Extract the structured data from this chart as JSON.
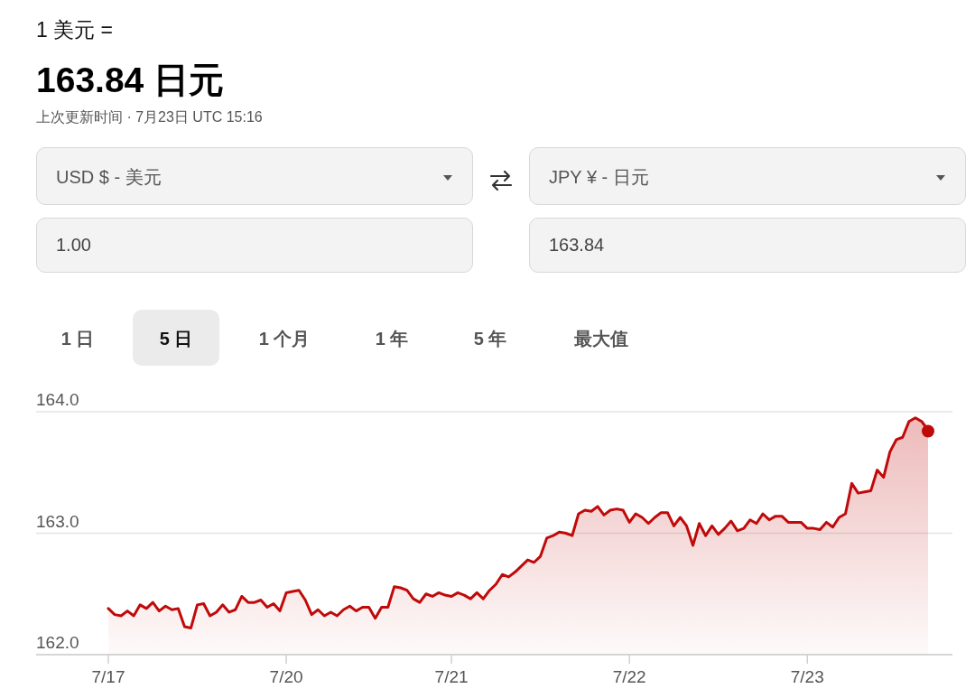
{
  "chart_data": {
    "type": "area",
    "title": "1 美元 =",
    "subtitle": "163.84 日元",
    "annotations": [
      "上次更新时间 · 7月23日 UTC 15:16",
      "USD $ - 美元",
      "JPY ¥ - 日元",
      "1.00",
      "163.84",
      "1 日",
      "5 日",
      "1 个月",
      "1 年",
      "5 年",
      "最大值"
    ],
    "categories": [
      "7/17",
      null,
      null,
      null,
      null,
      null,
      null,
      null,
      null,
      null,
      null,
      null,
      null,
      null,
      null,
      null,
      null,
      null,
      null,
      null,
      null,
      null,
      null,
      null,
      null,
      null,
      null,
      null,
      "7/20",
      null,
      null,
      null,
      null,
      null,
      null,
      null,
      null,
      null,
      null,
      null,
      null,
      null,
      null,
      null,
      null,
      null,
      null,
      null,
      null,
      null,
      null,
      null,
      null,
      null,
      "7/21",
      null,
      null,
      null,
      null,
      null,
      null,
      null,
      null,
      null,
      null,
      null,
      null,
      null,
      null,
      null,
      null,
      null,
      null,
      null,
      null,
      null,
      null,
      null,
      null,
      null,
      null,
      null,
      "7/22",
      null,
      null,
      null,
      null,
      null,
      null,
      null,
      null,
      null,
      null,
      null,
      null,
      null,
      null,
      null,
      null,
      null,
      null,
      null,
      null,
      null,
      null,
      null,
      null,
      null,
      null,
      null,
      "7/23",
      null,
      null,
      null,
      null,
      null,
      null,
      null,
      null,
      null,
      null,
      null,
      null,
      null,
      null,
      null,
      null,
      null,
      null,
      null
    ],
    "ylim": [
      162,
      164
    ],
    "yticks": [
      {
        "value": 162,
        "label": "162.0"
      },
      {
        "value": 163,
        "label": "163.0"
      },
      {
        "value": 164,
        "label": "164.0"
      }
    ],
    "grid": "y",
    "series": [
      {
        "color": "#c00a0a",
        "values": [
          162.38,
          162.33,
          162.32,
          162.36,
          162.32,
          162.41,
          162.38,
          162.43,
          162.36,
          162.4,
          162.37,
          162.38,
          162.23,
          162.22,
          162.41,
          162.42,
          162.32,
          162.35,
          162.41,
          162.35,
          162.37,
          162.48,
          162.43,
          162.43,
          162.45,
          162.39,
          162.42,
          162.36,
          162.51,
          162.52,
          162.53,
          162.45,
          162.33,
          162.37,
          162.32,
          162.35,
          162.32,
          162.37,
          162.4,
          162.36,
          162.39,
          162.39,
          162.3,
          162.39,
          162.39,
          162.56,
          162.55,
          162.53,
          162.46,
          162.43,
          162.5,
          162.48,
          162.51,
          162.49,
          162.48,
          162.51,
          162.49,
          162.46,
          162.51,
          162.46,
          162.53,
          162.58,
          162.66,
          162.64,
          162.68,
          162.73,
          162.78,
          162.76,
          162.81,
          162.96,
          162.98,
          163.01,
          163,
          162.98,
          163.16,
          163.19,
          163.18,
          163.22,
          163.15,
          163.19,
          163.2,
          163.19,
          163.09,
          163.16,
          163.13,
          163.08,
          163.13,
          163.17,
          163.17,
          163.06,
          163.13,
          163.06,
          162.9,
          163.08,
          162.98,
          163.06,
          162.99,
          163.04,
          163.1,
          163.02,
          163.04,
          163.11,
          163.08,
          163.16,
          163.11,
          163.14,
          163.14,
          163.09,
          163.09,
          163.09,
          163.04,
          163.04,
          163.03,
          163.09,
          163.05,
          163.13,
          163.16,
          163.41,
          163.33,
          163.34,
          163.35,
          163.52,
          163.46,
          163.67,
          163.77,
          163.79,
          163.92,
          163.95,
          163.92,
          163.85
        ]
      },
      {
        "type": "scatter",
        "marker": "circle",
        "color": "#c00a0a",
        "values": [
          null,
          null,
          null,
          null,
          null,
          null,
          null,
          null,
          null,
          null,
          null,
          null,
          null,
          null,
          null,
          null,
          null,
          null,
          null,
          null,
          null,
          null,
          null,
          null,
          null,
          null,
          null,
          null,
          null,
          null,
          null,
          null,
          null,
          null,
          null,
          null,
          null,
          null,
          null,
          null,
          null,
          null,
          null,
          null,
          null,
          null,
          null,
          null,
          null,
          null,
          null,
          null,
          null,
          null,
          null,
          null,
          null,
          null,
          null,
          null,
          null,
          null,
          null,
          null,
          null,
          null,
          null,
          null,
          null,
          null,
          null,
          null,
          null,
          null,
          null,
          null,
          null,
          null,
          null,
          null,
          null,
          null,
          null,
          null,
          null,
          null,
          null,
          null,
          null,
          null,
          null,
          null,
          null,
          null,
          null,
          null,
          null,
          null,
          null,
          null,
          null,
          null,
          null,
          null,
          null,
          null,
          null,
          null,
          null,
          null,
          null,
          null,
          null,
          null,
          null,
          null,
          null,
          null,
          null,
          null,
          null,
          null,
          null,
          null,
          null,
          null,
          null,
          null,
          null,
          163.84
        ]
      }
    ]
  }
}
